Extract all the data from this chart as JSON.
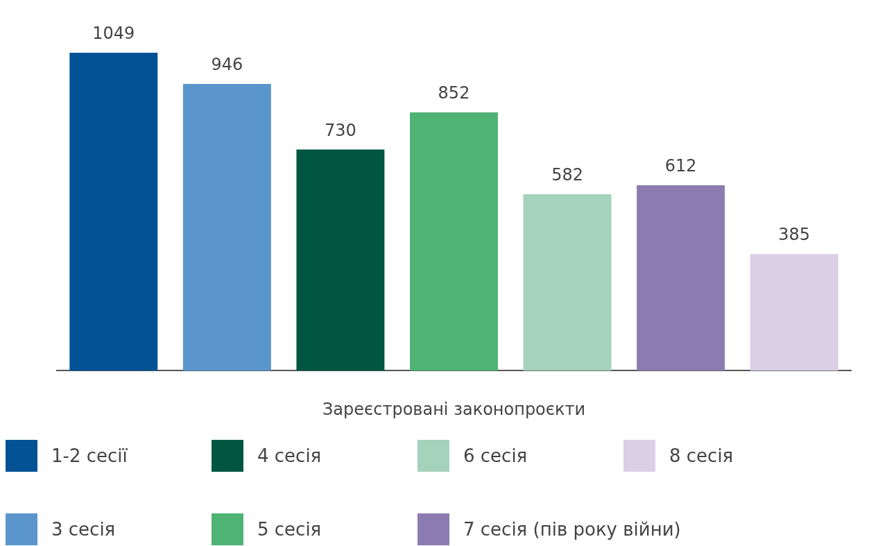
{
  "chart_data": {
    "type": "bar",
    "stacked": true,
    "xlabel": "Зареєстровані законопроєкти",
    "categories": [
      null,
      null,
      null,
      null,
      null,
      null,
      null
    ],
    "series": [
      {
        "name": "1-2 сесії",
        "color": "#035296",
        "values": [
          1049,
          null,
          null,
          null,
          null,
          null,
          null
        ]
      },
      {
        "name": "3 сесія",
        "color": "#5a96cc",
        "values": [
          null,
          946,
          null,
          null,
          null,
          null,
          null
        ]
      },
      {
        "name": "4 сесія",
        "color": "#005640",
        "values": [
          null,
          null,
          730,
          null,
          null,
          null,
          null
        ]
      },
      {
        "name": "5 сесія",
        "color": "#4eb374",
        "values": [
          null,
          null,
          null,
          852,
          null,
          null,
          null
        ]
      },
      {
        "name": "6 сесія",
        "color": "#a4d2bb",
        "values": [
          null,
          null,
          null,
          null,
          582,
          null,
          null
        ]
      },
      {
        "name": "7 сесія (пів року війни)",
        "color": "#8c7bb1",
        "values": [
          null,
          null,
          null,
          null,
          null,
          612,
          null
        ]
      },
      {
        "name": "8 сесія",
        "color": "#dbcfe6",
        "values": [
          null,
          null,
          null,
          null,
          null,
          null,
          385
        ]
      }
    ],
    "data_labels": true,
    "legend": "bottom",
    "grid": false,
    "tick_labels": "x"
  }
}
